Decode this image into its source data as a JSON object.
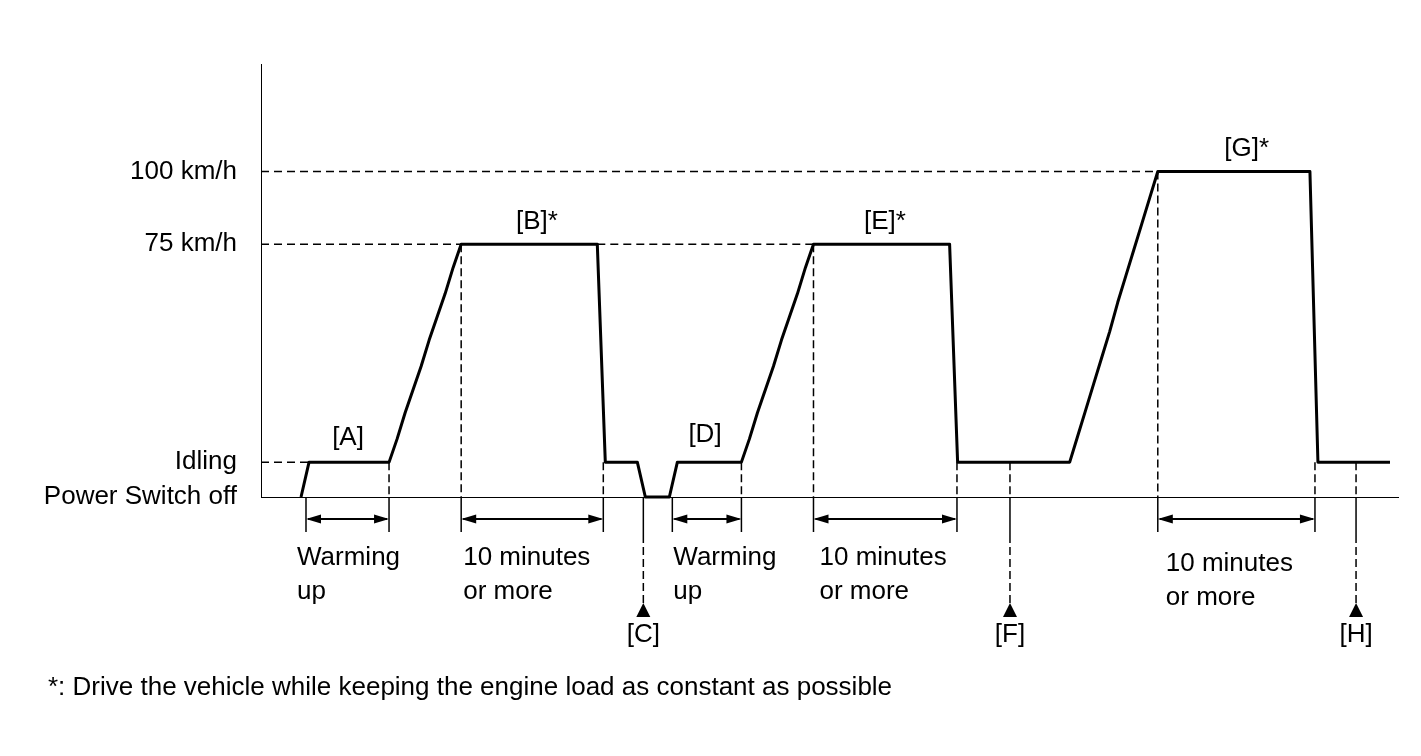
{
  "chart_data": {
    "type": "line",
    "categories": [
      null,
      null,
      null,
      null,
      null,
      null,
      null,
      null,
      null,
      null,
      null,
      null,
      null,
      null,
      null,
      null,
      null,
      null,
      null,
      null,
      null,
      null,
      null,
      null,
      null,
      null,
      null,
      null,
      null,
      null,
      null,
      null,
      null,
      null,
      null,
      null,
      null,
      null,
      null,
      null,
      null,
      null,
      null,
      null,
      null,
      null,
      null,
      null,
      null,
      null,
      null,
      null,
      null,
      null,
      null,
      null,
      null,
      null,
      null,
      null,
      null,
      null,
      null,
      null,
      null,
      null,
      null,
      null,
      null,
      null,
      null,
      null,
      null,
      null,
      null,
      null,
      null,
      null,
      null,
      null,
      null,
      null,
      null,
      null,
      null,
      null,
      null,
      null,
      null,
      null,
      null,
      null,
      null,
      null,
      null,
      null,
      null,
      null,
      null,
      null,
      null,
      null,
      null,
      null,
      null,
      null,
      null,
      null,
      null,
      null,
      null,
      null,
      null,
      null,
      null,
      null,
      null,
      null,
      null,
      null,
      null,
      null,
      null,
      null,
      null,
      null,
      null,
      null,
      null,
      null,
      null,
      null,
      null,
      null,
      null,
      null,
      null,
      null,
      null,
      null,
      null,
      null,
      null
    ],
    "series": [
      {
        "color": "#000000",
        "values": [
          null,
          null,
          null,
          null,
          null,
          -12,
          0,
          0,
          0,
          0,
          0,
          0,
          0,
          0,
          0,
          0,
          0,
          8,
          17,
          25,
          33,
          42,
          50,
          58,
          67,
          75,
          75,
          75,
          75,
          75,
          75,
          75,
          75,
          75,
          75,
          75,
          75,
          75,
          75,
          75,
          75,
          75,
          75,
          0,
          0,
          0,
          0,
          0,
          -12,
          -12,
          -12,
          -12,
          0,
          0,
          0,
          0,
          0,
          0,
          0,
          0,
          0,
          8,
          17,
          25,
          33,
          42,
          50,
          58,
          67,
          75,
          75,
          75,
          75,
          75,
          75,
          75,
          75,
          75,
          75,
          75,
          75,
          75,
          75,
          75,
          75,
          75,
          75,
          0,
          0,
          0,
          0,
          0,
          0,
          0,
          0,
          0,
          0,
          0,
          0,
          0,
          0,
          0,
          9,
          18,
          27,
          36,
          45,
          55,
          64,
          73,
          82,
          91,
          100,
          100,
          100,
          100,
          100,
          100,
          100,
          100,
          100,
          100,
          100,
          100,
          100,
          100,
          100,
          100,
          100,
          100,
          100,
          100,
          0,
          0,
          0,
          0,
          0,
          0,
          0,
          0,
          0,
          0,
          null
        ]
      },
      {
        "color": "#000000",
        "line_style": "dashed",
        "values": [
          100,
          100,
          100,
          100,
          100,
          100,
          100,
          100,
          100,
          100,
          100,
          100,
          100,
          100,
          100,
          100,
          100,
          100,
          100,
          100,
          100,
          100,
          100,
          100,
          100,
          100,
          100,
          100,
          100,
          100,
          100,
          100,
          100,
          100,
          100,
          100,
          100,
          100,
          100,
          100,
          100,
          100,
          100,
          100,
          100,
          100,
          100,
          100,
          100,
          100,
          100,
          100,
          100,
          100,
          100,
          100,
          100,
          100,
          100,
          100,
          100,
          100,
          100,
          100,
          100,
          100,
          100,
          100,
          100,
          100,
          100,
          100,
          100,
          100,
          100,
          100,
          100,
          100,
          100,
          100,
          100,
          100,
          100,
          100,
          100,
          100,
          100,
          100,
          100,
          100,
          100,
          100,
          100,
          100,
          100,
          100,
          100,
          100,
          100,
          100,
          100,
          100,
          100,
          100,
          100,
          100,
          100,
          100,
          100,
          100,
          100,
          100,
          100,
          null,
          null,
          null,
          null,
          null,
          null,
          null,
          null,
          null,
          null,
          null,
          null,
          null,
          null,
          null,
          null,
          null,
          null,
          null,
          null,
          null,
          null,
          null,
          null,
          null,
          null,
          null,
          null,
          null,
          null
        ]
      },
      {
        "color": "#000000",
        "line_style": "dashed",
        "values": [
          75,
          75,
          75,
          75,
          75,
          75,
          75,
          75,
          75,
          75,
          75,
          75,
          75,
          75,
          75,
          75,
          75,
          75,
          75,
          75,
          75,
          75,
          75,
          75,
          75,
          75,
          null,
          null,
          null,
          null,
          null,
          null,
          null,
          null,
          null,
          null,
          null,
          null,
          null,
          null,
          null,
          null,
          75,
          75,
          75,
          75,
          75,
          75,
          75,
          75,
          75,
          75,
          75,
          75,
          75,
          75,
          75,
          75,
          75,
          75,
          75,
          75,
          75,
          75,
          75,
          75,
          75,
          75,
          75,
          75,
          null,
          null,
          null,
          null,
          null,
          null,
          null,
          null,
          null,
          null,
          null,
          null,
          null,
          null,
          null,
          null,
          null,
          null,
          null,
          null,
          null,
          null,
          null,
          null,
          null,
          null,
          null,
          null,
          null,
          null,
          null,
          null,
          null,
          null,
          null,
          null,
          null,
          null,
          null,
          null,
          null,
          null,
          null,
          null,
          null,
          null,
          null,
          null,
          null,
          null,
          null,
          null,
          null,
          null,
          null,
          null,
          null,
          null,
          null,
          null,
          null,
          null,
          null,
          null,
          null,
          null,
          null,
          null,
          null,
          null,
          null,
          null,
          null
        ]
      },
      {
        "color": "#000000",
        "line_style": "dashed",
        "values": [
          0,
          0,
          0,
          0,
          0,
          0,
          0,
          null,
          null,
          null,
          null,
          null,
          null,
          null,
          null,
          null,
          null,
          null,
          null,
          null,
          null,
          null,
          null,
          null,
          null,
          null,
          null,
          null,
          null,
          null,
          null,
          null,
          null,
          null,
          null,
          null,
          null,
          null,
          null,
          null,
          null,
          null,
          null,
          null,
          null,
          null,
          null,
          null,
          null,
          null,
          null,
          null,
          null,
          null,
          null,
          null,
          null,
          null,
          null,
          null,
          null,
          null,
          null,
          null,
          null,
          null,
          null,
          null,
          null,
          null,
          null,
          null,
          null,
          null,
          null,
          null,
          null,
          null,
          null,
          null,
          null,
          null,
          null,
          null,
          null,
          null,
          null,
          null,
          null,
          null,
          null,
          null,
          null,
          null,
          null,
          null,
          null,
          null,
          null,
          null,
          null,
          null,
          null,
          null,
          null,
          null,
          null,
          null,
          null,
          null,
          null,
          null,
          null,
          null,
          null,
          null,
          null,
          null,
          null,
          null,
          null,
          null,
          null,
          null,
          null,
          null,
          null,
          null,
          null,
          null,
          null,
          null,
          null,
          null,
          null,
          null,
          null,
          null,
          null,
          null,
          null,
          null,
          null
        ]
      }
    ],
    "ylim": [
      -12,
      137
    ],
    "yticks": [
      {
        "value": -12,
        "label": "Power Switch off"
      },
      {
        "value": 0,
        "label": "Idling"
      },
      {
        "value": 75,
        "label": "75 km/h"
      },
      {
        "value": 100,
        "label": "100 km/h"
      }
    ],
    "tick_labels": "y",
    "grid": false,
    "marker": "none",
    "line_style": "solid",
    "annotations": [
      "[A]",
      "[B]*",
      "[C]",
      "[D]",
      "[E]*",
      "[F]",
      "[G]*",
      "[H]",
      "Warming up",
      "10 minutes or more",
      "Warming up",
      "10 minutes or more",
      "10 minutes or more",
      "*: Drive the vehicle while keeping the engine load as constant as possible"
    ]
  }
}
